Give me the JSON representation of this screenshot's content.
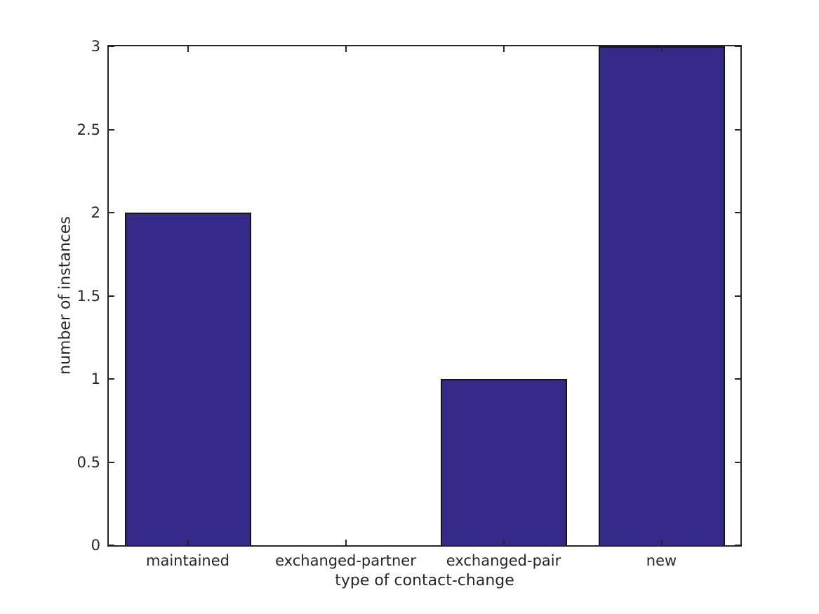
{
  "chart_data": {
    "type": "bar",
    "categories": [
      "maintained",
      "exchanged-partner",
      "exchanged-pair",
      "new"
    ],
    "values": [
      2,
      0,
      1,
      3
    ],
    "title": "",
    "xlabel": "type of contact-change",
    "ylabel": "number of instances",
    "ylim": [
      0,
      3
    ],
    "yticks": [
      0,
      0.5,
      1,
      1.5,
      2,
      2.5,
      3
    ],
    "ytick_labels": [
      "0",
      "0.5",
      "1",
      "1.5",
      "2",
      "2.5",
      "3"
    ],
    "grid": false,
    "legend": null,
    "bar_width_fraction": 0.8,
    "bar_color": "#352A87",
    "bar_edge_color": "#151515",
    "axis_color": "#262626",
    "text_color": "#262626",
    "background_color": "#ffffff"
  }
}
